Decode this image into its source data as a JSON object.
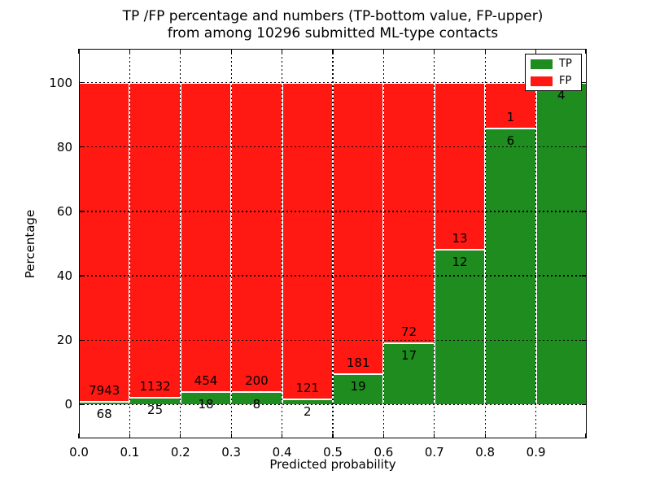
{
  "chart_data": {
    "type": "bar",
    "stacked": true,
    "normalized_to_percent": true,
    "title": "TP /FP percentage and numbers (TP-bottom value, FP-upper) from among 10296 submitted ML-type contacts",
    "title_line1": "TP /FP percentage and numbers (TP-bottom value, FP-upper)",
    "title_line2": "from among 10296 submitted ML-type contacts",
    "xlabel": "Predicted probability",
    "ylabel": "Percentage",
    "total_contacts": 10296,
    "xlim": [
      0.0,
      1.0
    ],
    "ylim": [
      -10.5,
      110.5
    ],
    "bin_width": 0.1,
    "x_bin_starts": [
      0.0,
      0.1,
      0.2,
      0.3,
      0.4,
      0.5,
      0.6,
      0.7,
      0.8,
      0.9
    ],
    "x_tick_labels": [
      "0.0",
      "0.1",
      "0.2",
      "0.3",
      "0.4",
      "0.5",
      "0.6",
      "0.7",
      "0.8",
      "0.9"
    ],
    "y_tick_values": [
      0,
      20,
      40,
      60,
      80,
      100
    ],
    "y_tick_labels": [
      "0",
      "20",
      "40",
      "60",
      "80",
      "100"
    ],
    "grid": true,
    "gridline_style": "dotted",
    "series": [
      {
        "name": "TP",
        "color": "#1e8c1e",
        "counts": [
          68,
          25,
          18,
          8,
          2,
          19,
          17,
          12,
          6,
          4
        ]
      },
      {
        "name": "FP",
        "color": "#ff1912",
        "counts": [
          7943,
          1132,
          454,
          200,
          121,
          181,
          72,
          13,
          1,
          0
        ]
      }
    ],
    "tp_percent": [
      0.85,
      2.16,
      3.81,
      3.85,
      1.63,
      9.5,
      19.1,
      48.0,
      85.71,
      100.0
    ],
    "fp_label_visible": [
      true,
      true,
      true,
      true,
      true,
      true,
      true,
      true,
      true,
      false
    ],
    "bar_edge_color": "#ffffff",
    "legend": {
      "position": "upper right",
      "entries": [
        {
          "label": "TP",
          "color": "#1e8c1e"
        },
        {
          "label": "FP",
          "color": "#ff1912"
        }
      ]
    }
  }
}
